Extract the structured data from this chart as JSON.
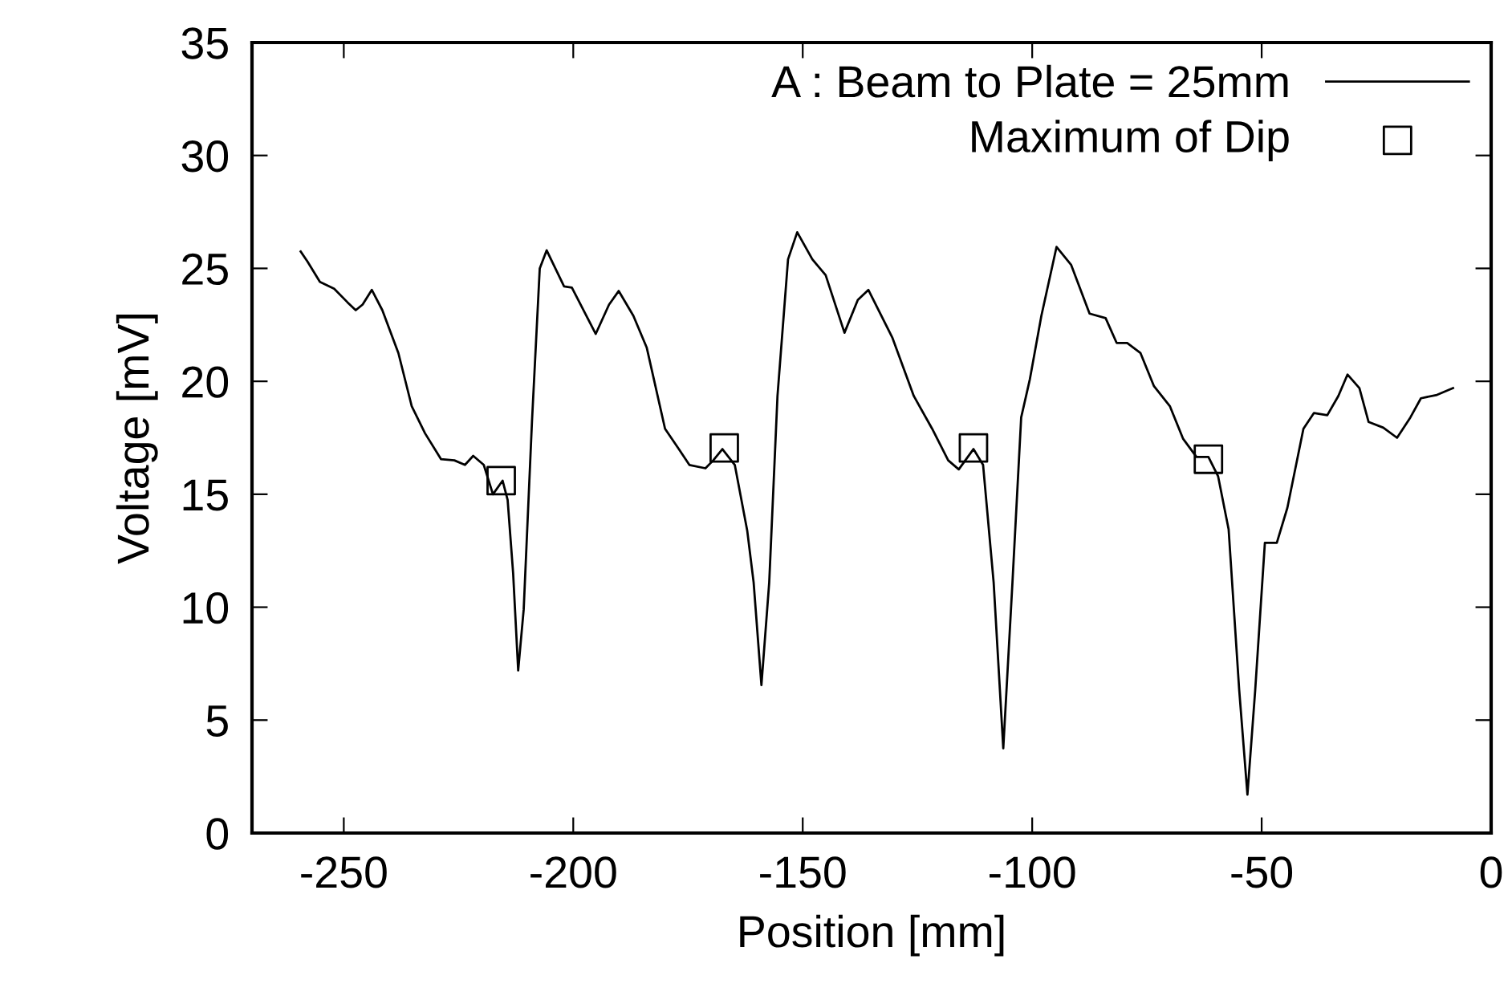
{
  "chart_data": {
    "type": "line",
    "xlabel": "Position [mm]",
    "ylabel": "Voltage [mV]",
    "xlim": [
      -270,
      0
    ],
    "xticks": [
      -250,
      -200,
      -150,
      -100,
      -50,
      0
    ],
    "ylim": [
      0,
      35
    ],
    "yticks": [
      0,
      5,
      10,
      15,
      20,
      25,
      30,
      35
    ],
    "grid": false,
    "legend": "top right",
    "series": [
      {
        "name": "A : Beam to Plate = 25mm",
        "color": "#000000",
        "marker": "none",
        "x": [
          -259.4,
          -257.9,
          -255.2,
          -252.1,
          -249.2,
          -247.4,
          -245.9,
          -243.9,
          -241.6,
          -238.1,
          -235.2,
          -232.3,
          -228.8,
          -225.9,
          -223.6,
          -221.8,
          -219.5,
          -217.5,
          -215.4,
          -214.3,
          -213.1,
          -212.0,
          -210.8,
          -209.0,
          -207.3,
          -205.8,
          -202.0,
          -200.3,
          -195.1,
          -192.2,
          -190.1,
          -186.9,
          -184.0,
          -180.0,
          -177.0,
          -174.7,
          -171.2,
          -169.5,
          -167.5,
          -164.8,
          -162.1,
          -160.7,
          -159.0,
          -157.3,
          -155.5,
          -153.2,
          -151.2,
          -147.9,
          -145.0,
          -140.9,
          -138.0,
          -135.7,
          -130.5,
          -125.8,
          -121.8,
          -118.3,
          -116.0,
          -112.8,
          -110.7,
          -108.4,
          -106.3,
          -104.3,
          -102.4,
          -100.5,
          -98.0,
          -94.7,
          -91.5,
          -87.5,
          -84.0,
          -81.6,
          -79.3,
          -76.4,
          -73.5,
          -70.0,
          -67.1,
          -64.2,
          -61.6,
          -59.5,
          -57.2,
          -54.9,
          -53.1,
          -51.4,
          -49.3,
          -46.7,
          -44.4,
          -40.9,
          -38.6,
          -35.7,
          -33.3,
          -31.3,
          -28.7,
          -26.7,
          -23.5,
          -20.5,
          -17.6,
          -15.3,
          -11.8,
          -8.3
        ],
        "values": [
          25.75,
          25.3,
          24.4,
          24.1,
          23.5,
          23.15,
          23.4,
          24.05,
          23.15,
          21.25,
          18.9,
          17.7,
          16.55,
          16.5,
          16.3,
          16.7,
          16.3,
          15.0,
          15.6,
          14.75,
          11.5,
          7.2,
          9.9,
          18.2,
          25.0,
          25.8,
          24.2,
          24.15,
          22.1,
          23.4,
          24.0,
          22.9,
          21.5,
          17.9,
          17.0,
          16.3,
          16.15,
          16.5,
          17.0,
          16.3,
          13.4,
          11.1,
          6.55,
          11.1,
          19.35,
          25.4,
          26.6,
          25.4,
          24.7,
          22.15,
          23.6,
          24.05,
          21.95,
          19.35,
          17.9,
          16.5,
          16.1,
          17.0,
          16.3,
          11.1,
          3.75,
          11.1,
          18.4,
          20.1,
          22.9,
          25.95,
          25.15,
          23.0,
          22.8,
          21.7,
          21.7,
          21.25,
          19.8,
          18.9,
          17.45,
          16.65,
          16.65,
          15.8,
          13.45,
          6.35,
          1.7,
          6.35,
          12.85,
          12.85,
          14.4,
          17.9,
          18.6,
          18.5,
          19.35,
          20.3,
          19.7,
          18.2,
          17.95,
          17.5,
          18.4,
          19.25,
          19.4,
          19.7
        ]
      },
      {
        "name": "Maximum of Dip",
        "type": "scatter",
        "color": "#000000",
        "marker": "square",
        "x": [
          -215.7,
          -167.1,
          -112.8,
          -61.6
        ],
        "values": [
          15.6,
          17.05,
          17.05,
          16.55
        ]
      }
    ]
  }
}
